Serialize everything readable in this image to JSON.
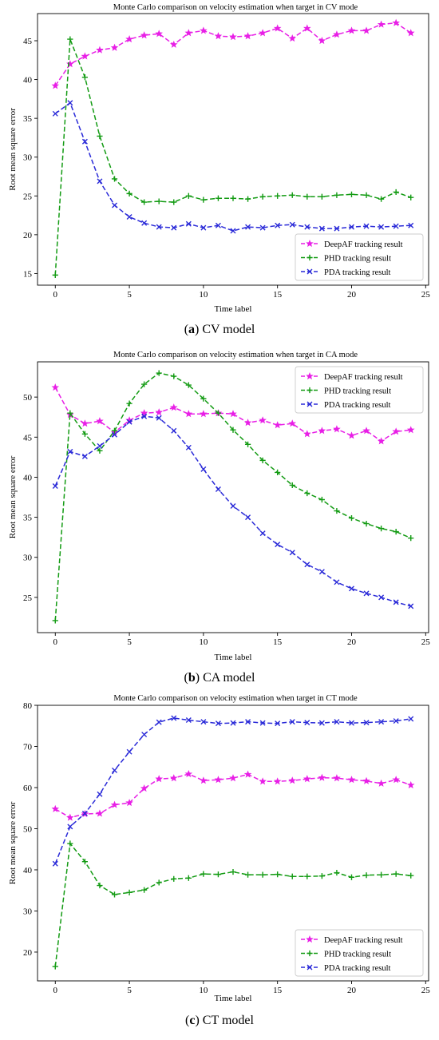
{
  "chart_data": [
    {
      "type": "line",
      "title": "Monte Carlo comparison on velocity estimation when target in CV mode",
      "xlabel": "Time label",
      "ylabel": "Root mean square error",
      "caption_letter": "a",
      "caption_text": "CV model",
      "xlim": [
        -1.2,
        25.2
      ],
      "ylim": [
        13.5,
        48.5
      ],
      "xticks": [
        0,
        5,
        10,
        15,
        20,
        25
      ],
      "yticks": [
        15,
        20,
        25,
        30,
        35,
        40,
        45
      ],
      "legend_position": "lower-right",
      "x": [
        0,
        1,
        2,
        3,
        4,
        5,
        6,
        7,
        8,
        9,
        10,
        11,
        12,
        13,
        14,
        15,
        16,
        17,
        18,
        19,
        20,
        21,
        22,
        23,
        24
      ],
      "series": [
        {
          "name": "DeepAF tracking result",
          "color": "#e81fe6",
          "marker": "star",
          "values": [
            39.2,
            42.0,
            43.0,
            43.8,
            44.1,
            45.2,
            45.7,
            45.9,
            44.5,
            46.0,
            46.3,
            45.6,
            45.5,
            45.6,
            46.0,
            46.6,
            45.3,
            46.6,
            45.0,
            45.8,
            46.3,
            46.3,
            47.1,
            47.3,
            46.0
          ]
        },
        {
          "name": "PHD tracking result",
          "color": "#139b13",
          "marker": "plus",
          "values": [
            14.8,
            45.2,
            40.3,
            32.7,
            27.2,
            25.3,
            24.2,
            24.3,
            24.2,
            25.0,
            24.5,
            24.7,
            24.7,
            24.6,
            24.9,
            25.0,
            25.1,
            24.9,
            24.9,
            25.1,
            25.2,
            25.1,
            24.6,
            25.5,
            24.8
          ]
        },
        {
          "name": "PDA tracking result",
          "color": "#2a2ad8",
          "marker": "x",
          "values": [
            35.6,
            37.0,
            32.0,
            26.9,
            23.8,
            22.3,
            21.5,
            21.0,
            20.9,
            21.4,
            20.9,
            21.2,
            20.5,
            21.0,
            20.9,
            21.2,
            21.3,
            21.0,
            20.8,
            20.8,
            21.0,
            21.1,
            21.0,
            21.1,
            21.2
          ]
        }
      ]
    },
    {
      "type": "line",
      "title": "Monte Carlo comparison on velocity estimation when target in CA mode",
      "xlabel": "Time label",
      "ylabel": "Root mean square error",
      "caption_letter": "b",
      "caption_text": "CA model",
      "xlim": [
        -1.2,
        25.2
      ],
      "ylim": [
        20.6,
        54.4
      ],
      "xticks": [
        0,
        5,
        10,
        15,
        20,
        25
      ],
      "yticks": [
        25,
        30,
        35,
        40,
        45,
        50
      ],
      "legend_position": "upper-right",
      "x": [
        0,
        1,
        2,
        3,
        4,
        5,
        6,
        7,
        8,
        9,
        10,
        11,
        12,
        13,
        14,
        15,
        16,
        17,
        18,
        19,
        20,
        21,
        22,
        23,
        24
      ],
      "series": [
        {
          "name": "DeepAF tracking result",
          "color": "#e81fe6",
          "marker": "star",
          "values": [
            51.2,
            47.8,
            46.7,
            47.0,
            45.6,
            47.1,
            48.0,
            48.1,
            48.7,
            47.9,
            47.9,
            48.0,
            47.9,
            46.8,
            47.1,
            46.5,
            46.7,
            45.4,
            45.8,
            46.0,
            45.2,
            45.8,
            44.5,
            45.7,
            45.9
          ]
        },
        {
          "name": "PHD tracking result",
          "color": "#139b13",
          "marker": "plus",
          "values": [
            22.1,
            48.0,
            45.4,
            43.3,
            45.8,
            49.2,
            51.6,
            53.0,
            52.6,
            51.5,
            49.8,
            48.0,
            45.9,
            44.1,
            42.1,
            40.6,
            39.0,
            38.0,
            37.2,
            35.8,
            34.9,
            34.2,
            33.6,
            33.2,
            32.4
          ]
        },
        {
          "name": "PDA tracking result",
          "color": "#2a2ad8",
          "marker": "x",
          "values": [
            38.9,
            43.2,
            42.6,
            43.9,
            45.3,
            46.9,
            47.6,
            47.4,
            45.8,
            43.7,
            41.0,
            38.5,
            36.4,
            35.0,
            33.0,
            31.6,
            30.6,
            29.1,
            28.2,
            26.9,
            26.1,
            25.5,
            25.0,
            24.4,
            23.9
          ]
        }
      ]
    },
    {
      "type": "line",
      "title": "Monte Carlo comparison on velocity estimation when target in CT mode",
      "xlabel": "Time label",
      "ylabel": "Root mean square error",
      "caption_letter": "c",
      "caption_text": "CT model",
      "xlim": [
        -1.2,
        25.2
      ],
      "ylim": [
        13.0,
        80.0
      ],
      "xticks": [
        0,
        5,
        10,
        15,
        20,
        25
      ],
      "yticks": [
        20,
        30,
        40,
        50,
        60,
        70,
        80
      ],
      "legend_position": "lower-right",
      "x": [
        0,
        1,
        2,
        3,
        4,
        5,
        6,
        7,
        8,
        9,
        10,
        11,
        12,
        13,
        14,
        15,
        16,
        17,
        18,
        19,
        20,
        21,
        22,
        23,
        24
      ],
      "series": [
        {
          "name": "DeepAF tracking result",
          "color": "#e81fe6",
          "marker": "star",
          "values": [
            54.8,
            52.7,
            53.6,
            53.7,
            55.8,
            56.3,
            59.8,
            62.1,
            62.3,
            63.3,
            61.7,
            61.9,
            62.3,
            63.2,
            61.5,
            61.5,
            61.7,
            62.1,
            62.4,
            62.3,
            61.9,
            61.6,
            61.0,
            61.9,
            60.6
          ]
        },
        {
          "name": "PHD tracking result",
          "color": "#139b13",
          "marker": "plus",
          "values": [
            16.5,
            46.4,
            42.0,
            36.2,
            34.0,
            34.5,
            35.1,
            36.9,
            37.8,
            38.0,
            39.0,
            38.9,
            39.5,
            38.8,
            38.8,
            38.9,
            38.4,
            38.4,
            38.5,
            39.3,
            38.2,
            38.7,
            38.8,
            39.0,
            38.6
          ]
        },
        {
          "name": "PDA tracking result",
          "color": "#2a2ad8",
          "marker": "x",
          "values": [
            41.5,
            50.5,
            53.7,
            58.4,
            64.2,
            68.7,
            72.9,
            75.9,
            76.9,
            76.4,
            76.0,
            75.6,
            75.7,
            76.0,
            75.7,
            75.6,
            76.0,
            75.8,
            75.7,
            76.0,
            75.7,
            75.8,
            76.0,
            76.2,
            76.7
          ]
        }
      ]
    }
  ]
}
